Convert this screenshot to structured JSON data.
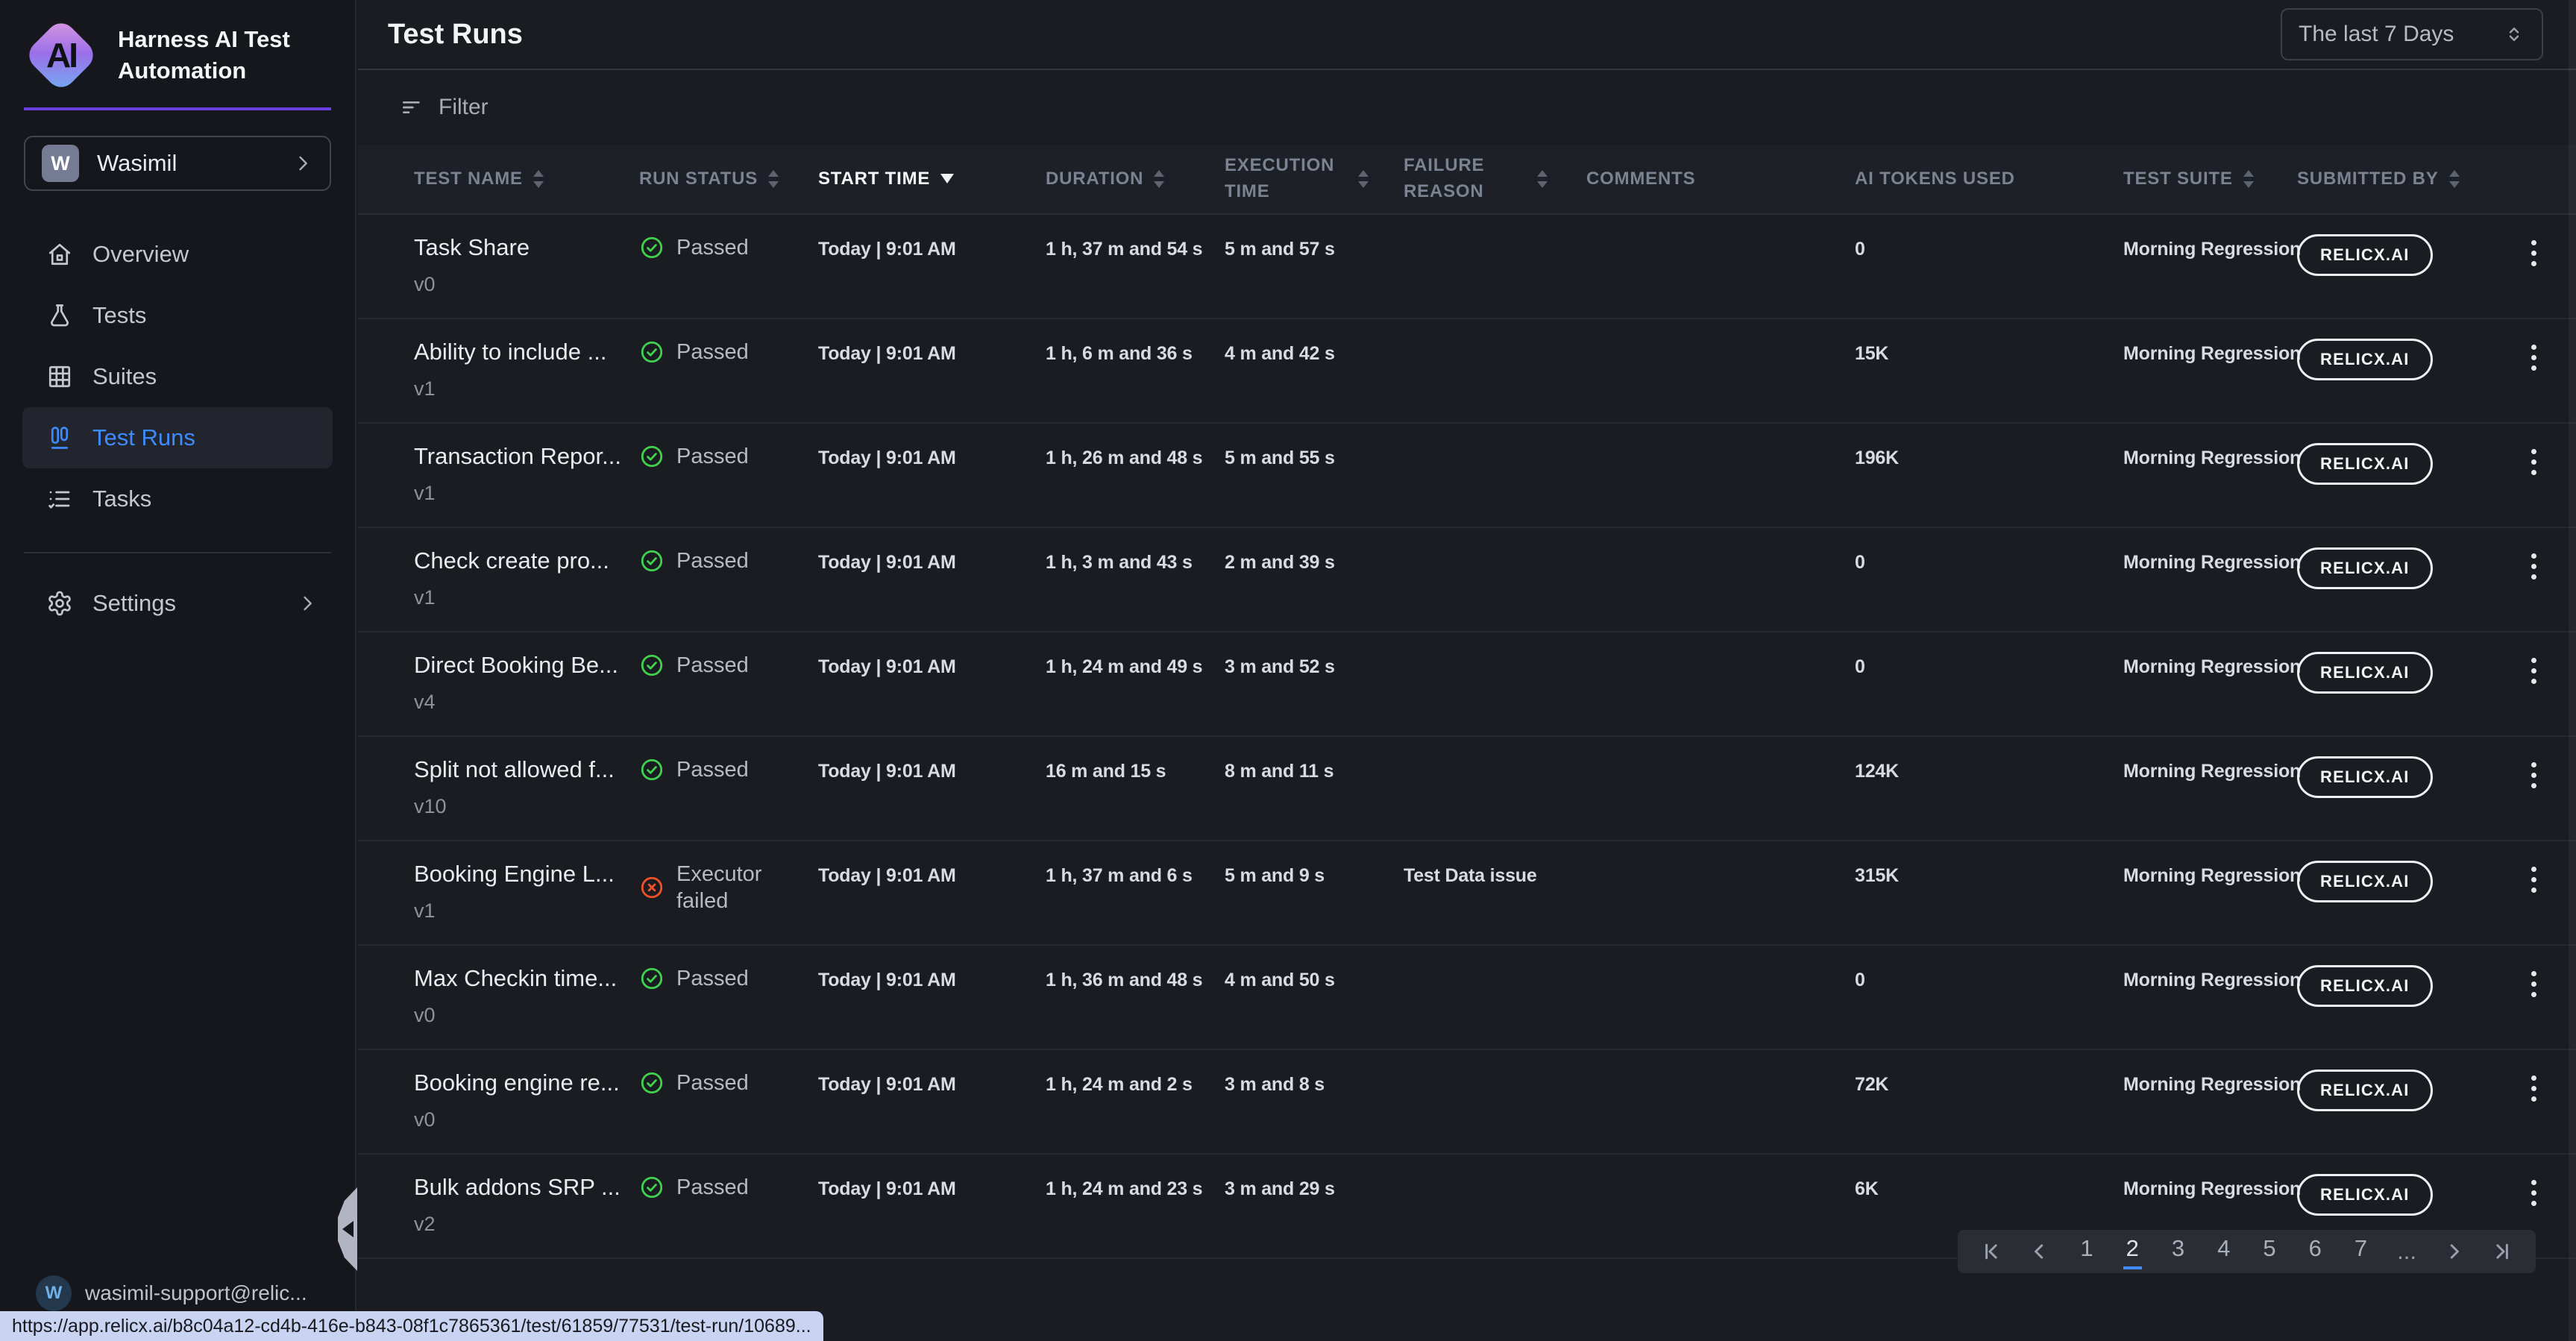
{
  "colors": {
    "accent_purple": "#6a3fe0",
    "active_blue": "#3e8bff",
    "passed_green": "#3fd24d",
    "failed_red": "#f1512a",
    "pagination_active": "#3f8cff",
    "statusbar_bg": "#c9d4f2"
  },
  "sidebar": {
    "logo_title": "Harness AI Test Automation",
    "logo_letters": "AI",
    "workspace": {
      "name": "Wasimil",
      "avatar_initial": "W"
    },
    "nav": [
      {
        "label": "Overview",
        "icon": "home-icon",
        "active": false
      },
      {
        "label": "Tests",
        "icon": "flask-icon",
        "active": false
      },
      {
        "label": "Suites",
        "icon": "grid-icon",
        "active": false
      },
      {
        "label": "Test Runs",
        "icon": "test-runs-icon",
        "active": true
      },
      {
        "label": "Tasks",
        "icon": "tasks-icon",
        "active": false
      }
    ],
    "settings_label": "Settings",
    "user": {
      "email": "wasimil-support@relic...",
      "avatar_initial": "W"
    }
  },
  "header": {
    "title": "Test Runs",
    "date_range": "The last 7 Days"
  },
  "toolbar": {
    "filter_label": "Filter"
  },
  "table": {
    "columns": [
      {
        "label": "TEST NAME",
        "sortable": true
      },
      {
        "label": "RUN STATUS",
        "sortable": true
      },
      {
        "label": "START TIME",
        "sortable": true,
        "sorted": "desc"
      },
      {
        "label": "DURATION",
        "sortable": true
      },
      {
        "label": "EXECUTION TIME",
        "sortable": true
      },
      {
        "label": "FAILURE REASON",
        "sortable": true
      },
      {
        "label": "COMMENTS",
        "sortable": false
      },
      {
        "label": "AI TOKENS USED",
        "sortable": false
      },
      {
        "label": "TEST SUITE",
        "sortable": true
      },
      {
        "label": "SUBMITTED BY",
        "sortable": true
      }
    ],
    "rows": [
      {
        "name": "Task Share",
        "version": "v0",
        "status": "Passed",
        "status_kind": "passed",
        "start": "Today | 9:01 AM",
        "duration": "1 h, 37 m and 54 s",
        "execution": "5 m and 57 s",
        "failure": "",
        "comments": "",
        "tokens": "0",
        "suite": "Morning Regression",
        "submitted": "RELICX.AI"
      },
      {
        "name": "Ability to include ...",
        "version": "v1",
        "status": "Passed",
        "status_kind": "passed",
        "start": "Today | 9:01 AM",
        "duration": "1 h, 6 m and 36 s",
        "execution": "4 m and 42 s",
        "failure": "",
        "comments": "",
        "tokens": "15K",
        "suite": "Morning Regression",
        "submitted": "RELICX.AI"
      },
      {
        "name": "Transaction Repor...",
        "version": "v1",
        "status": "Passed",
        "status_kind": "passed",
        "start": "Today | 9:01 AM",
        "duration": "1 h, 26 m and 48 s",
        "execution": "5 m and 55 s",
        "failure": "",
        "comments": "",
        "tokens": "196K",
        "suite": "Morning Regression",
        "submitted": "RELICX.AI"
      },
      {
        "name": "Check create pro...",
        "version": "v1",
        "status": "Passed",
        "status_kind": "passed",
        "start": "Today | 9:01 AM",
        "duration": "1 h, 3 m and 43 s",
        "execution": "2 m and 39 s",
        "failure": "",
        "comments": "",
        "tokens": "0",
        "suite": "Morning Regression",
        "submitted": "RELICX.AI"
      },
      {
        "name": "Direct Booking Be...",
        "version": "v4",
        "status": "Passed",
        "status_kind": "passed",
        "start": "Today | 9:01 AM",
        "duration": "1 h, 24 m and 49 s",
        "execution": "3 m and 52 s",
        "failure": "",
        "comments": "",
        "tokens": "0",
        "suite": "Morning Regression",
        "submitted": "RELICX.AI"
      },
      {
        "name": "Split not allowed f...",
        "version": "v10",
        "status": "Passed",
        "status_kind": "passed",
        "start": "Today | 9:01 AM",
        "duration": "16 m and 15 s",
        "execution": "8 m and 11 s",
        "failure": "",
        "comments": "",
        "tokens": "124K",
        "suite": "Morning Regression",
        "submitted": "RELICX.AI"
      },
      {
        "name": "Booking Engine L...",
        "version": "v1",
        "status": "Executor failed",
        "status_kind": "failed",
        "start": "Today | 9:01 AM",
        "duration": "1 h, 37 m and 6 s",
        "execution": "5 m and 9 s",
        "failure": "Test Data issue",
        "comments": "",
        "tokens": "315K",
        "suite": "Morning Regression",
        "submitted": "RELICX.AI"
      },
      {
        "name": "Max Checkin time...",
        "version": "v0",
        "status": "Passed",
        "status_kind": "passed",
        "start": "Today | 9:01 AM",
        "duration": "1 h, 36 m and 48 s",
        "execution": "4 m and 50 s",
        "failure": "",
        "comments": "",
        "tokens": "0",
        "suite": "Morning Regression",
        "submitted": "RELICX.AI"
      },
      {
        "name": "Booking engine re...",
        "version": "v0",
        "status": "Passed",
        "status_kind": "passed",
        "start": "Today | 9:01 AM",
        "duration": "1 h, 24 m and 2 s",
        "execution": "3 m and 8 s",
        "failure": "",
        "comments": "",
        "tokens": "72K",
        "suite": "Morning Regression",
        "submitted": "RELICX.AI"
      },
      {
        "name": "Bulk addons SRP ...",
        "version": "v2",
        "status": "Passed",
        "status_kind": "passed",
        "start": "Today | 9:01 AM",
        "duration": "1 h, 24 m and 23 s",
        "execution": "3 m and 29 s",
        "failure": "",
        "comments": "",
        "tokens": "6K",
        "suite": "Morning Regression",
        "submitted": "RELICX.AI"
      }
    ]
  },
  "pagination": {
    "items": [
      "first",
      "prev",
      "1",
      "2",
      "3",
      "4",
      "5",
      "6",
      "7",
      "ellipsis",
      "next",
      "last"
    ],
    "active_page": "2",
    "ellipsis_label": "..."
  },
  "status_bar": {
    "url": "https://app.relicx.ai/b8c04a12-cd4b-416e-b843-08f1c7865361/test/61859/77531/test-run/10689..."
  }
}
